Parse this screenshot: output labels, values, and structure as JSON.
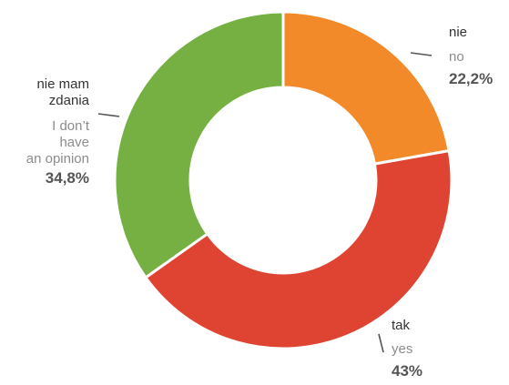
{
  "chart_data": {
    "type": "pie",
    "donut": true,
    "slices": [
      {
        "label_pl": "nie",
        "label_en": "no",
        "value": 22.2,
        "display": "22,2%",
        "color": "#f28a2a"
      },
      {
        "label_pl": "tak",
        "label_en": "yes",
        "value": 43.0,
        "display": "43%",
        "color": "#df4331"
      },
      {
        "label_pl": [
          "nie mam",
          "zdania"
        ],
        "label_en": [
          "I don’t",
          "have",
          "an opinion"
        ],
        "value": 34.8,
        "display": "34,8%",
        "color": "#76b043"
      }
    ]
  }
}
